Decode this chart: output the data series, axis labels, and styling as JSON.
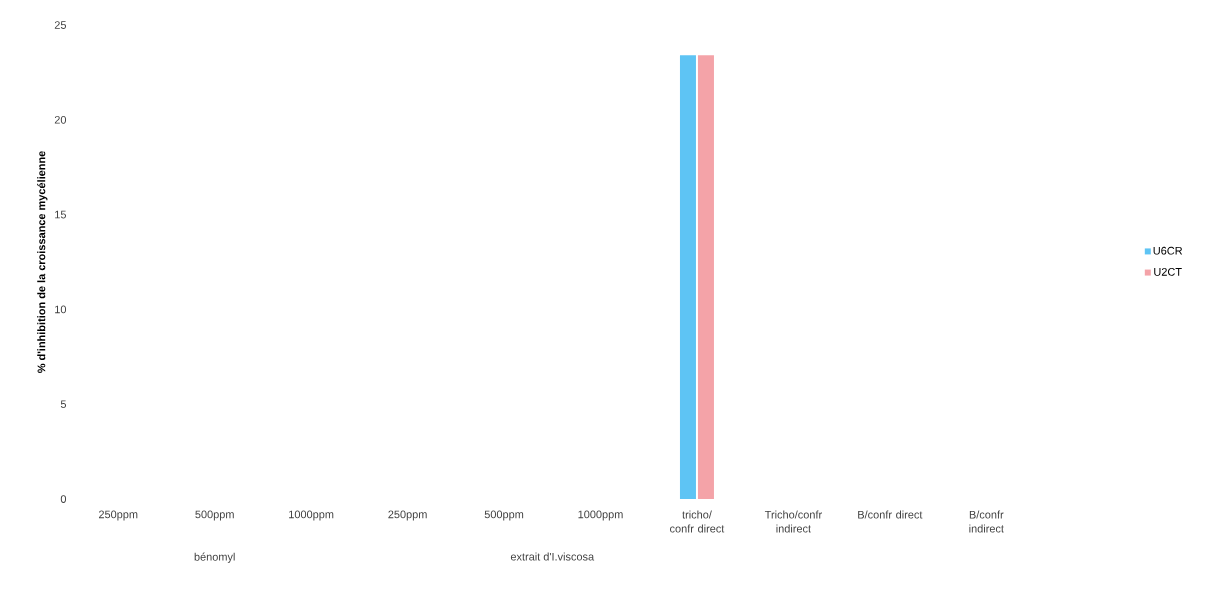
{
  "chart_data": {
    "type": "bar",
    "ylabel": "% d'inhibition de la croissance mycélienne",
    "categories": [
      "250ppm",
      "500ppm",
      "1000ppm",
      "250ppm",
      "500ppm",
      "1000ppm",
      "tricho/ confr direct",
      "Tricho/confr indirect",
      "B/confr direct",
      "B/confr indirect"
    ],
    "series": [
      {
        "name": "U6CR",
        "color": "#5ec4f4",
        "values": [
          0,
          0,
          0,
          0,
          0,
          0,
          23.4,
          0,
          0,
          0
        ]
      },
      {
        "name": "U2CT",
        "color": "#f4a3a8",
        "values": [
          0,
          0,
          0,
          0,
          0,
          0,
          23.4,
          0,
          0,
          0
        ]
      }
    ],
    "annotations": [
      "bénomyl",
      "extrait d'I.viscosa"
    ],
    "ylim": [
      0,
      25
    ],
    "yticks": [
      0,
      5,
      10,
      15,
      20,
      25
    ],
    "grid": false,
    "legend": "right"
  }
}
